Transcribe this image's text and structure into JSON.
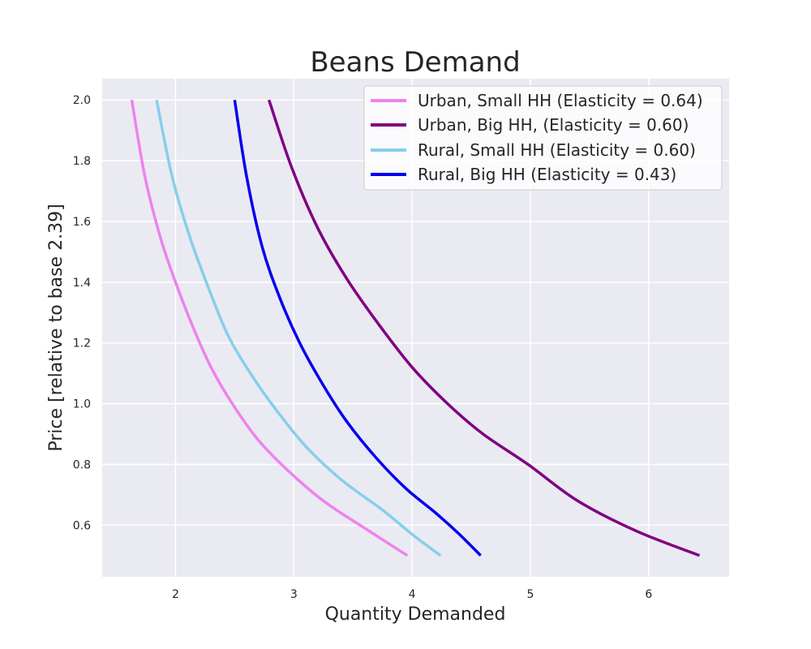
{
  "chart_data": {
    "type": "line",
    "title": "Beans Demand",
    "xlabel": "Quantity Demanded",
    "ylabel": "Price [relative to base 2.39]",
    "xlim": [
      1.38,
      6.68
    ],
    "ylim": [
      0.43,
      2.07
    ],
    "xticks": [
      2,
      3,
      4,
      5,
      6
    ],
    "xtick_labels": [
      "2",
      "3",
      "4",
      "5",
      "6"
    ],
    "yticks": [
      0.6,
      0.8,
      1.0,
      1.2,
      1.4,
      1.6,
      1.8,
      2.0
    ],
    "ytick_labels": [
      "0.6",
      "0.8",
      "1.0",
      "1.2",
      "1.4",
      "1.6",
      "1.8",
      "2.0"
    ],
    "grid": true,
    "background": "#eaeaf2",
    "legend_position": "top-right",
    "series": [
      {
        "name": "Urban, Small HH (Elasticity = 0.64)",
        "color": "#ee82ee",
        "points": [
          [
            1.63,
            2.0
          ],
          [
            1.74,
            1.75
          ],
          [
            1.87,
            1.55
          ],
          [
            2.0,
            1.4
          ],
          [
            2.15,
            1.25
          ],
          [
            2.3,
            1.12
          ],
          [
            2.48,
            1.0
          ],
          [
            2.7,
            0.88
          ],
          [
            2.95,
            0.78
          ],
          [
            3.25,
            0.68
          ],
          [
            3.6,
            0.59
          ],
          [
            3.96,
            0.5
          ]
        ]
      },
      {
        "name": "Urban, Big HH, (Elasticity = 0.60)",
        "color": "#800080",
        "points": [
          [
            2.79,
            2.0
          ],
          [
            2.98,
            1.78
          ],
          [
            3.2,
            1.58
          ],
          [
            3.45,
            1.41
          ],
          [
            3.72,
            1.26
          ],
          [
            4.0,
            1.12
          ],
          [
            4.3,
            1.0
          ],
          [
            4.6,
            0.9
          ],
          [
            4.98,
            0.8
          ],
          [
            5.4,
            0.68
          ],
          [
            5.9,
            0.58
          ],
          [
            6.43,
            0.5
          ]
        ]
      },
      {
        "name": "Rural, Small HH (Elasticity = 0.60)",
        "color": "#87ceeb",
        "points": [
          [
            1.84,
            2.0
          ],
          [
            1.97,
            1.75
          ],
          [
            2.12,
            1.55
          ],
          [
            2.28,
            1.38
          ],
          [
            2.45,
            1.22
          ],
          [
            2.65,
            1.09
          ],
          [
            2.85,
            0.98
          ],
          [
            3.1,
            0.86
          ],
          [
            3.4,
            0.75
          ],
          [
            3.75,
            0.65
          ],
          [
            4.0,
            0.57
          ],
          [
            4.24,
            0.5
          ]
        ]
      },
      {
        "name": "Rural, Big HH (Elasticity = 0.43)",
        "color": "#0000ee",
        "points": [
          [
            2.5,
            2.0
          ],
          [
            2.6,
            1.75
          ],
          [
            2.73,
            1.52
          ],
          [
            2.88,
            1.35
          ],
          [
            3.05,
            1.2
          ],
          [
            3.25,
            1.06
          ],
          [
            3.45,
            0.94
          ],
          [
            3.7,
            0.82
          ],
          [
            3.95,
            0.72
          ],
          [
            4.2,
            0.64
          ],
          [
            4.4,
            0.57
          ],
          [
            4.58,
            0.5
          ]
        ]
      }
    ]
  }
}
